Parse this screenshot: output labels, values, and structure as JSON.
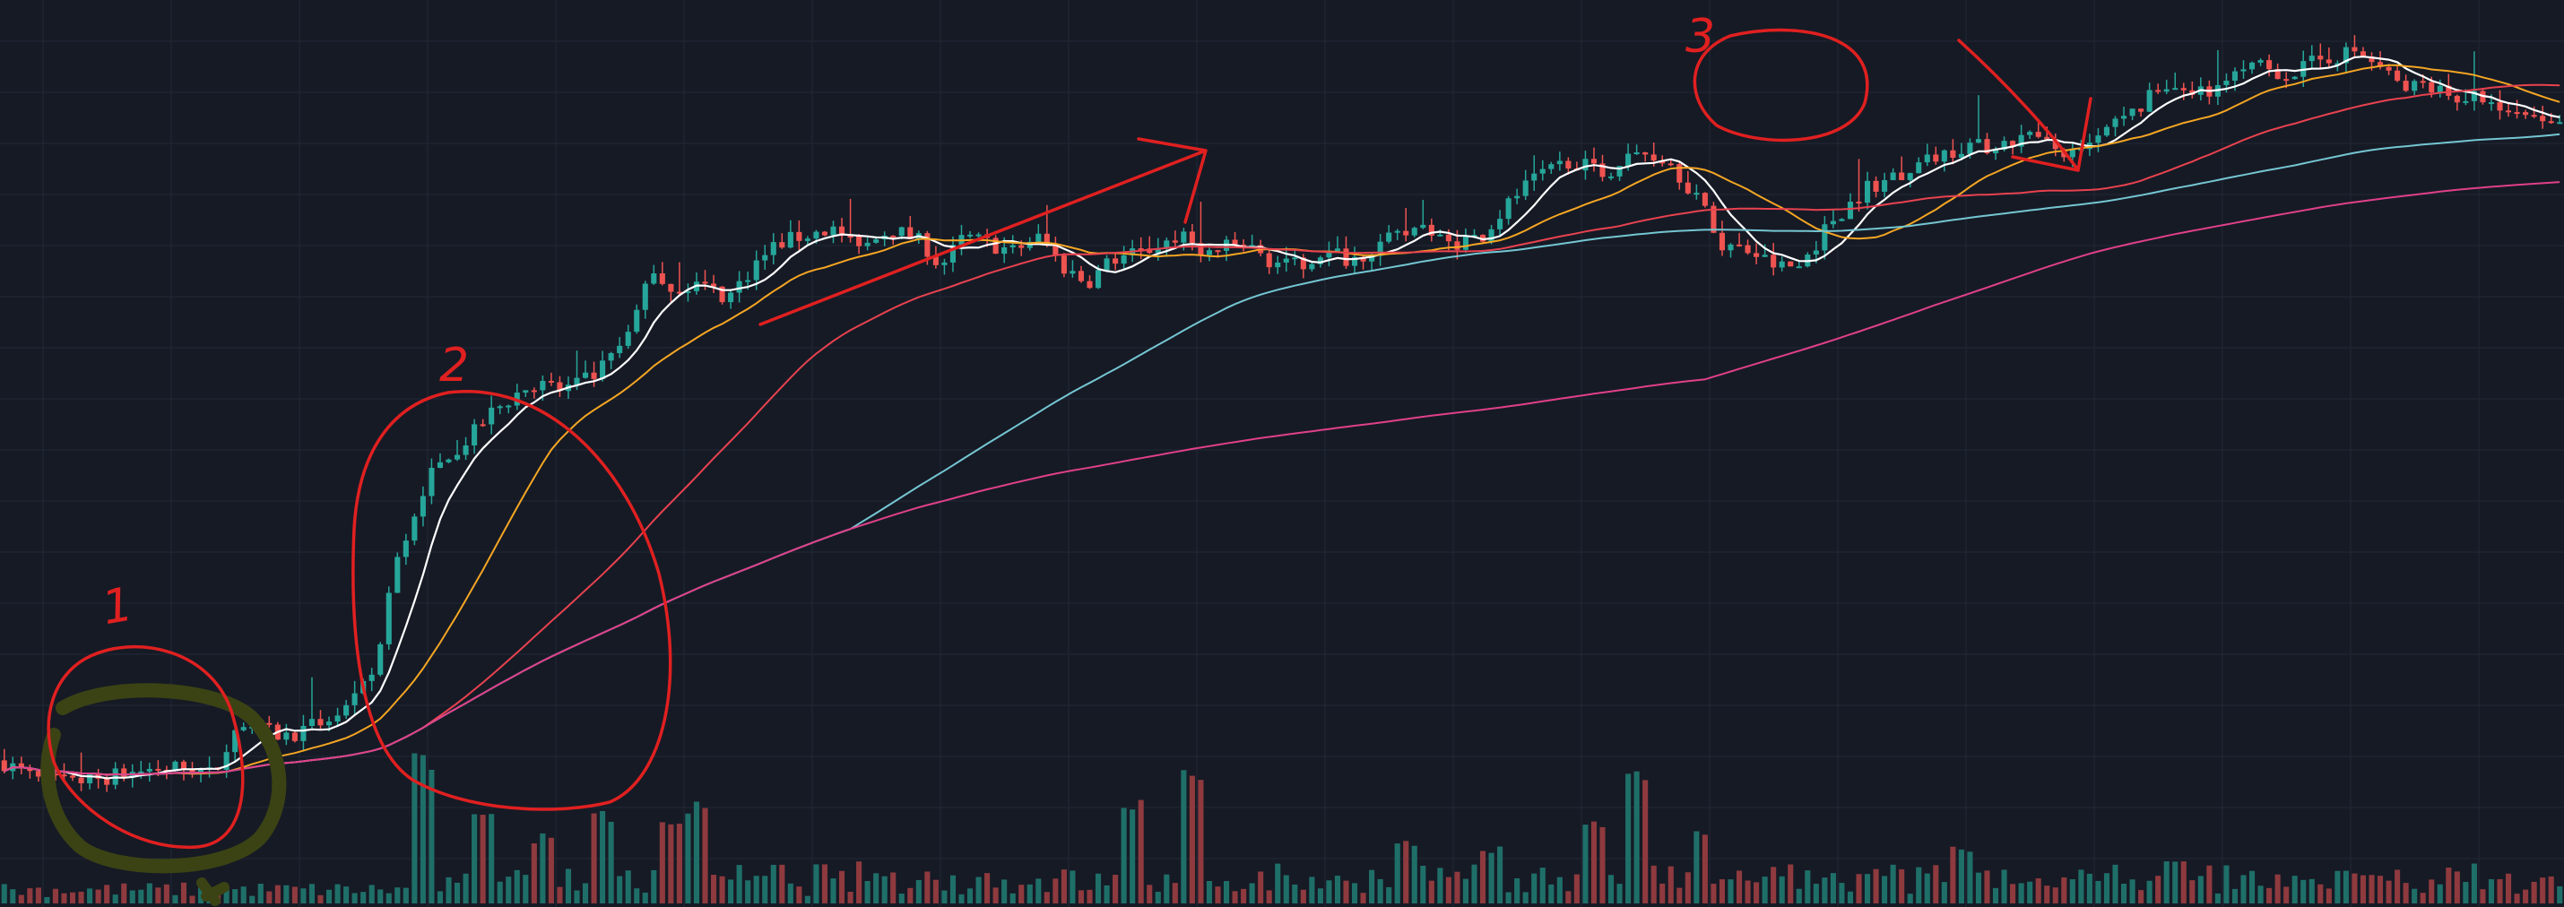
{
  "colors": {
    "background": "#161a25",
    "grid": "#232837",
    "candle_up": "#26a69a",
    "candle_down": "#ef5350",
    "volume_up": "#1f6f69",
    "volume_down": "#8e3a3e",
    "ma_fast": "#ffffff",
    "ma_20": "#f5a623",
    "ma_50": "#e8424f",
    "ma_100": "#74c6d2",
    "ma_200": "#e0408a",
    "annotation_red": "#e02020",
    "annotation_olive": "#3b4314"
  },
  "annotations": {
    "labels": [
      "1",
      "2",
      "3"
    ]
  },
  "chart_data": {
    "type": "candlestick",
    "title": "",
    "xlabel": "",
    "ylabel": "",
    "grid": true,
    "legend": "none",
    "y_range": [
      0,
      100
    ],
    "candle_count": 300,
    "price_path_keypoints": [
      [
        0,
        6
      ],
      [
        22,
        3.5
      ],
      [
        45,
        3
      ],
      [
        70,
        4
      ],
      [
        95,
        5
      ],
      [
        118,
        5
      ],
      [
        131,
        4
      ],
      [
        140,
        9
      ],
      [
        148,
        11
      ],
      [
        158,
        10
      ],
      [
        175,
        9
      ],
      [
        195,
        11
      ],
      [
        215,
        13
      ],
      [
        230,
        18
      ],
      [
        240,
        30
      ],
      [
        260,
        42
      ],
      [
        275,
        46
      ],
      [
        288,
        48
      ],
      [
        300,
        51
      ],
      [
        325,
        55
      ],
      [
        345,
        54
      ],
      [
        365,
        56
      ],
      [
        385,
        61
      ],
      [
        398,
        70
      ],
      [
        410,
        67
      ],
      [
        425,
        68
      ],
      [
        445,
        66
      ],
      [
        460,
        70
      ],
      [
        475,
        73
      ],
      [
        490,
        74
      ],
      [
        510,
        75
      ],
      [
        525,
        72
      ],
      [
        545,
        75
      ],
      [
        565,
        73
      ],
      [
        575,
        70
      ],
      [
        590,
        74
      ],
      [
        605,
        73
      ],
      [
        620,
        72
      ],
      [
        636,
        74
      ],
      [
        650,
        70
      ],
      [
        665,
        68
      ],
      [
        680,
        71
      ],
      [
        700,
        72
      ],
      [
        720,
        74
      ],
      [
        740,
        72
      ],
      [
        760,
        73
      ],
      [
        775,
        71
      ],
      [
        790,
        70
      ],
      [
        810,
        72
      ],
      [
        826,
        71
      ],
      [
        845,
        73
      ],
      [
        868,
        75
      ],
      [
        885,
        73
      ],
      [
        906,
        74
      ],
      [
        930,
        80
      ],
      [
        960,
        84
      ],
      [
        980,
        82
      ],
      [
        1003,
        85
      ],
      [
        1020,
        84
      ],
      [
        1038,
        79
      ],
      [
        1052,
        73
      ],
      [
        1070,
        72
      ],
      [
        1087,
        70
      ],
      [
        1100,
        70
      ],
      [
        1120,
        76
      ],
      [
        1140,
        80
      ],
      [
        1160,
        82
      ],
      [
        1180,
        84
      ],
      [
        1203,
        86
      ],
      [
        1220,
        85
      ],
      [
        1238,
        87
      ],
      [
        1250,
        86
      ],
      [
        1270,
        84
      ],
      [
        1290,
        88
      ],
      [
        1305,
        90
      ],
      [
        1320,
        93
      ],
      [
        1340,
        92
      ],
      [
        1360,
        94
      ],
      [
        1380,
        96
      ],
      [
        1400,
        95
      ],
      [
        1420,
        97
      ],
      [
        1440,
        98
      ],
      [
        1455,
        96
      ],
      [
        1470,
        93
      ],
      [
        1485,
        94
      ],
      [
        1500,
        92
      ],
      [
        1515,
        92
      ],
      [
        1530,
        90
      ],
      [
        1546,
        89
      ],
      [
        1560,
        88
      ],
      [
        1568,
        89
      ]
    ],
    "moving_averages": [
      {
        "period": 7,
        "color_key": "ma_fast"
      },
      {
        "period": 20,
        "color_key": "ma_20"
      },
      {
        "period": 50,
        "color_key": "ma_50"
      },
      {
        "period": 100,
        "color_key": "ma_100"
      },
      {
        "period": 200,
        "color_key": "ma_200"
      }
    ],
    "volume_spikes": [
      {
        "x": 258,
        "v": 100
      },
      {
        "x": 294,
        "v": 64
      },
      {
        "x": 330,
        "v": 46
      },
      {
        "x": 370,
        "v": 63
      },
      {
        "x": 410,
        "v": 58
      },
      {
        "x": 425,
        "v": 67
      },
      {
        "x": 695,
        "v": 70
      },
      {
        "x": 727,
        "v": 88
      },
      {
        "x": 860,
        "v": 44
      },
      {
        "x": 913,
        "v": 39
      },
      {
        "x": 975,
        "v": 55
      },
      {
        "x": 1003,
        "v": 92
      },
      {
        "x": 1040,
        "v": 50
      },
      {
        "x": 1200,
        "v": 38
      },
      {
        "x": 1330,
        "v": 28
      }
    ]
  }
}
